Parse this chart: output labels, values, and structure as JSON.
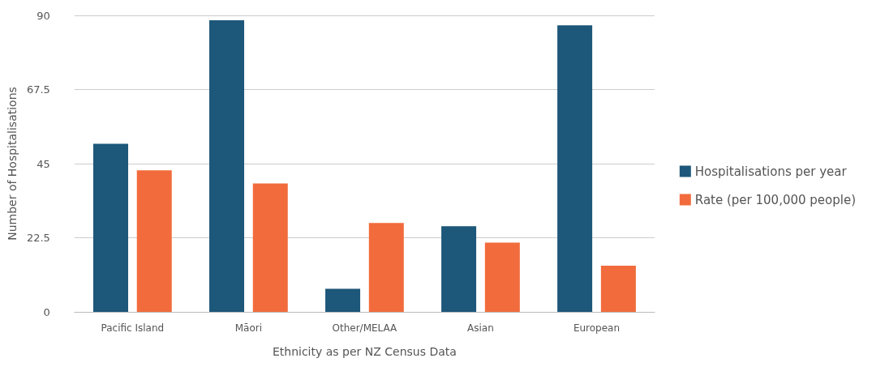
{
  "chart_data": {
    "type": "bar",
    "xlabel": "Ethnicity as per NZ Census Data",
    "ylabel": "Number of Hospitalisations",
    "categories": [
      "Pacific Island",
      "Māori",
      "Other/MELAA",
      "Asian",
      "European"
    ],
    "series": [
      {
        "name": "Hospitalisations per year",
        "color": "#1d5779",
        "values": [
          51,
          88.5,
          7,
          26,
          87
        ]
      },
      {
        "name": "Rate (per 100,000 people)",
        "color": "#f26b3c",
        "values": [
          43,
          39,
          27,
          21,
          14
        ]
      }
    ],
    "ylim": [
      0,
      90
    ],
    "yticks": [
      0,
      22.5,
      45,
      67.5,
      90
    ],
    "grid": "y",
    "legend": "right"
  }
}
